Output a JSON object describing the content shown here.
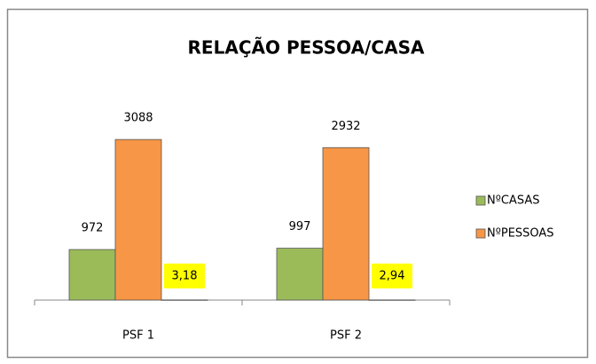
{
  "chart_data": {
    "type": "bar",
    "title": "RELAÇÃO PESSOA/CASA",
    "categories": [
      "PSF 1",
      "PSF 2"
    ],
    "series": [
      {
        "name": "NºCASAS",
        "color": "#9bbb59",
        "values": [
          972,
          997
        ]
      },
      {
        "name": "NºPESSOAS",
        "color": "#f79646",
        "values": [
          3088,
          2932
        ]
      },
      {
        "color": "#c3d69b",
        "values": [
          3.18,
          2.94
        ],
        "value_labels": [
          "3,18",
          "2,94"
        ],
        "label_background": "#ffff00"
      }
    ],
    "ylim": [
      0,
      3500
    ],
    "legend": "right"
  }
}
